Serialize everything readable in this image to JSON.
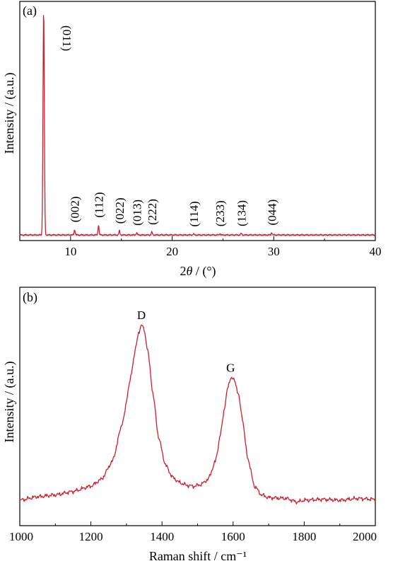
{
  "chart_data": [
    {
      "type": "line",
      "panel_label": "(a)",
      "xlabel_prefix": "2",
      "xlabel_symbol": "θ",
      "xlabel_suffix": " / (°)",
      "ylabel": "Intensity / (a.u.)",
      "xlim": [
        5,
        40
      ],
      "ylim": [
        0,
        1.03
      ],
      "x_ticks": [
        10,
        20,
        30,
        40
      ],
      "y_ticks_shown": false,
      "grid": false,
      "color": "#cc1f2c",
      "baseline": 0.024,
      "peaks": [
        {
          "label": "(011)",
          "x": 7.35,
          "y": 1.0
        },
        {
          "label": "(002)",
          "x": 10.4,
          "y": 0.048
        },
        {
          "label": "(112)",
          "x": 12.75,
          "y": 0.068
        },
        {
          "label": "(022)",
          "x": 14.8,
          "y": 0.042
        },
        {
          "label": "(013)",
          "x": 16.5,
          "y": 0.034
        },
        {
          "label": "(222)",
          "x": 18.0,
          "y": 0.037
        },
        {
          "label": "(114)",
          "x": 22.1,
          "y": 0.029
        },
        {
          "label": "(233)",
          "x": 24.7,
          "y": 0.03
        },
        {
          "label": "(134)",
          "x": 26.8,
          "y": 0.031
        },
        {
          "label": "(044)",
          "x": 29.8,
          "y": 0.035
        }
      ]
    },
    {
      "type": "line",
      "panel_label": "(b)",
      "xlabel": "Raman shift / cm⁻¹",
      "ylabel": "Intensity / (a.u.)",
      "xlim": [
        1000,
        2000
      ],
      "ylim": [
        0,
        1.07
      ],
      "x_ticks": [
        1000,
        1200,
        1400,
        1600,
        1800,
        2000
      ],
      "y_ticks_shown": false,
      "grid": false,
      "color": "#cc1f2c",
      "annotations": [
        {
          "label": "D",
          "x": 1342,
          "y": 1.0
        },
        {
          "label": "G",
          "x": 1593,
          "y": 0.7
        }
      ],
      "x": [
        1000,
        1050,
        1100,
        1150,
        1200,
        1230,
        1260,
        1290,
        1310,
        1325,
        1335,
        1342,
        1350,
        1360,
        1375,
        1390,
        1410,
        1430,
        1450,
        1470,
        1490,
        1510,
        1530,
        1550,
        1565,
        1575,
        1585,
        1593,
        1605,
        1615,
        1625,
        1640,
        1660,
        1680,
        1700,
        1750,
        1780,
        1800,
        1850,
        1900,
        1950,
        2000
      ],
      "y": [
        0.0,
        0.02,
        0.03,
        0.05,
        0.08,
        0.12,
        0.22,
        0.45,
        0.68,
        0.86,
        0.96,
        1.0,
        0.97,
        0.85,
        0.6,
        0.36,
        0.2,
        0.13,
        0.1,
        0.085,
        0.08,
        0.09,
        0.12,
        0.22,
        0.38,
        0.52,
        0.64,
        0.7,
        0.68,
        0.6,
        0.48,
        0.25,
        0.08,
        0.03,
        0.015,
        0.01,
        -0.01,
        0.0,
        0.005,
        0.0,
        0.01,
        0.005
      ]
    }
  ]
}
